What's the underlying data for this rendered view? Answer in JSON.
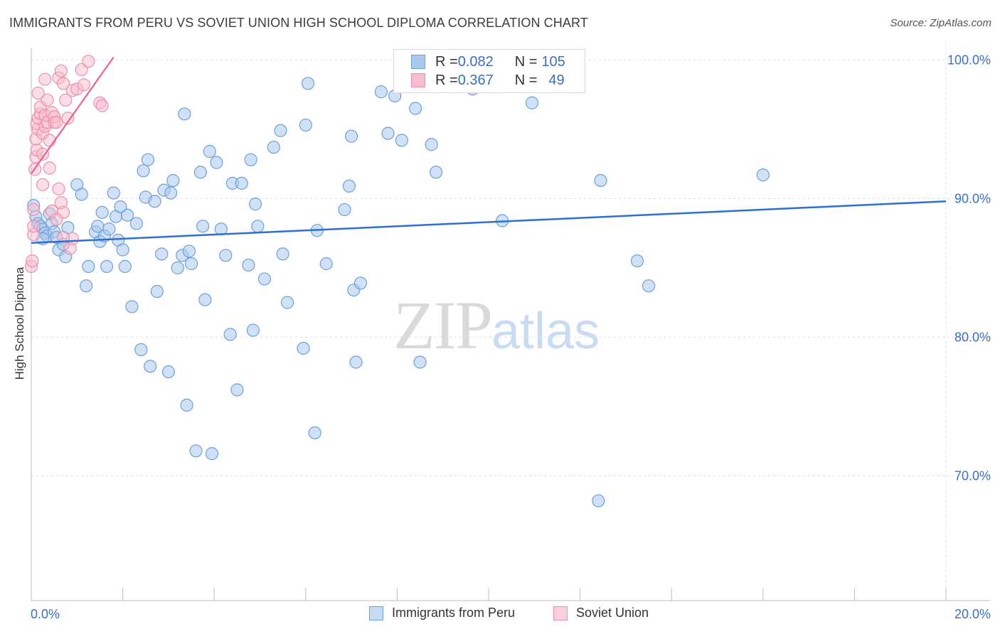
{
  "header": {
    "title": "IMMIGRANTS FROM PERU VS SOVIET UNION HIGH SCHOOL DIPLOMA CORRELATION CHART",
    "source": "Source: ZipAtlas.com"
  },
  "watermark": {
    "part1": "ZIP",
    "part2": "atlas"
  },
  "legend": {
    "rows": [
      {
        "r_key": "R = ",
        "r_val": "0.082",
        "n_key": "N = ",
        "n_val": "105"
      },
      {
        "r_key": "R = ",
        "r_val": "0.367",
        "n_key": "N = ",
        "n_val": "49"
      }
    ]
  },
  "chart_data": {
    "type": "scatter",
    "ylabel": "High School Diploma",
    "xlim": [
      0,
      20
    ],
    "ylim": [
      61,
      101.5
    ],
    "x_tick_labels": [
      "0.0%",
      "20.0%"
    ],
    "y_ticks": [
      70,
      80,
      90,
      100
    ],
    "y_tick_labels": [
      "70.0%",
      "80.0%",
      "90.0%",
      "100.0%"
    ],
    "grid": true,
    "colors": {
      "peru_fill": "#aac8ee",
      "peru_stroke": "#6f9fd8",
      "peru_line": "#2f6fcf",
      "soviet_fill": "#f7bccd",
      "soviet_stroke": "#ee8fab",
      "soviet_line": "#e8638e",
      "tick_label": "#3a6fc4"
    },
    "series": [
      {
        "name": "Immigrants from Peru",
        "r": 0.082,
        "n": 105,
        "trend": {
          "x": [
            0,
            20
          ],
          "y": [
            86.8,
            89.8
          ]
        },
        "points": [
          [
            0.05,
            89.5
          ],
          [
            0.1,
            88.7
          ],
          [
            0.15,
            88.2
          ],
          [
            0.2,
            88.0
          ],
          [
            0.25,
            87.8
          ],
          [
            0.3,
            87.5
          ],
          [
            0.35,
            87.3
          ],
          [
            0.25,
            87.1
          ],
          [
            0.4,
            88.9
          ],
          [
            0.45,
            88.2
          ],
          [
            0.5,
            87.6
          ],
          [
            0.55,
            87.2
          ],
          [
            0.6,
            86.3
          ],
          [
            0.7,
            86.7
          ],
          [
            0.75,
            85.8
          ],
          [
            0.8,
            87.9
          ],
          [
            1.0,
            91.0
          ],
          [
            1.1,
            90.3
          ],
          [
            1.2,
            83.7
          ],
          [
            1.25,
            85.1
          ],
          [
            1.4,
            87.6
          ],
          [
            1.45,
            88.0
          ],
          [
            1.5,
            86.9
          ],
          [
            1.55,
            89.0
          ],
          [
            1.6,
            87.3
          ],
          [
            1.65,
            85.1
          ],
          [
            1.7,
            87.8
          ],
          [
            1.8,
            90.4
          ],
          [
            1.85,
            88.7
          ],
          [
            1.9,
            87.0
          ],
          [
            1.95,
            89.4
          ],
          [
            2.0,
            86.3
          ],
          [
            2.05,
            85.1
          ],
          [
            2.1,
            88.8
          ],
          [
            2.2,
            82.2
          ],
          [
            2.3,
            88.2
          ],
          [
            2.4,
            79.1
          ],
          [
            2.45,
            92.0
          ],
          [
            2.5,
            90.1
          ],
          [
            2.55,
            92.8
          ],
          [
            2.6,
            77.9
          ],
          [
            2.7,
            89.8
          ],
          [
            2.75,
            83.3
          ],
          [
            2.85,
            86.0
          ],
          [
            2.9,
            90.6
          ],
          [
            3.0,
            77.5
          ],
          [
            3.05,
            90.4
          ],
          [
            3.1,
            91.3
          ],
          [
            3.2,
            85.0
          ],
          [
            3.3,
            85.9
          ],
          [
            3.35,
            96.1
          ],
          [
            3.4,
            75.1
          ],
          [
            3.45,
            86.2
          ],
          [
            3.5,
            85.3
          ],
          [
            3.6,
            71.8
          ],
          [
            3.7,
            91.9
          ],
          [
            3.75,
            88.0
          ],
          [
            3.8,
            82.7
          ],
          [
            3.9,
            93.4
          ],
          [
            3.95,
            71.6
          ],
          [
            4.05,
            92.6
          ],
          [
            4.15,
            87.8
          ],
          [
            4.25,
            85.9
          ],
          [
            4.35,
            80.2
          ],
          [
            4.4,
            91.1
          ],
          [
            4.5,
            76.2
          ],
          [
            4.6,
            91.1
          ],
          [
            4.75,
            85.2
          ],
          [
            4.8,
            92.8
          ],
          [
            4.85,
            80.5
          ],
          [
            4.9,
            89.6
          ],
          [
            4.95,
            88.0
          ],
          [
            5.1,
            84.2
          ],
          [
            5.3,
            93.7
          ],
          [
            5.45,
            94.9
          ],
          [
            5.5,
            86.0
          ],
          [
            5.6,
            82.5
          ],
          [
            5.95,
            79.2
          ],
          [
            6.0,
            95.3
          ],
          [
            6.05,
            98.3
          ],
          [
            6.2,
            73.1
          ],
          [
            6.25,
            87.7
          ],
          [
            6.45,
            85.3
          ],
          [
            6.85,
            89.2
          ],
          [
            6.95,
            90.9
          ],
          [
            7.0,
            94.5
          ],
          [
            7.05,
            83.4
          ],
          [
            7.1,
            78.2
          ],
          [
            7.2,
            83.9
          ],
          [
            7.65,
            97.7
          ],
          [
            7.8,
            94.7
          ],
          [
            7.95,
            97.4
          ],
          [
            8.1,
            94.2
          ],
          [
            8.4,
            96.5
          ],
          [
            8.5,
            78.2
          ],
          [
            8.75,
            93.9
          ],
          [
            8.85,
            91.9
          ],
          [
            9.65,
            97.9
          ],
          [
            10.3,
            88.4
          ],
          [
            10.95,
            96.9
          ],
          [
            12.4,
            68.2
          ],
          [
            12.45,
            91.3
          ],
          [
            13.25,
            85.5
          ],
          [
            13.5,
            83.7
          ],
          [
            16.0,
            91.7
          ]
        ]
      },
      {
        "name": "Soviet Union",
        "r": 0.367,
        "n": 49,
        "trend": {
          "x": [
            0,
            1.8
          ],
          "y": [
            91.8,
            100.2
          ]
        },
        "points": [
          [
            0.0,
            85.1
          ],
          [
            0.02,
            85.5
          ],
          [
            0.05,
            87.4
          ],
          [
            0.05,
            88.0
          ],
          [
            0.08,
            92.1
          ],
          [
            0.1,
            93.0
          ],
          [
            0.12,
            93.5
          ],
          [
            0.1,
            94.3
          ],
          [
            0.15,
            95.0
          ],
          [
            0.12,
            95.4
          ],
          [
            0.15,
            95.8
          ],
          [
            0.2,
            96.1
          ],
          [
            0.2,
            96.6
          ],
          [
            0.25,
            94.7
          ],
          [
            0.25,
            93.2
          ],
          [
            0.3,
            95.2
          ],
          [
            0.3,
            96.0
          ],
          [
            0.35,
            95.5
          ],
          [
            0.35,
            97.1
          ],
          [
            0.4,
            94.2
          ],
          [
            0.4,
            92.2
          ],
          [
            0.45,
            96.2
          ],
          [
            0.45,
            89.1
          ],
          [
            0.5,
            95.5
          ],
          [
            0.5,
            95.9
          ],
          [
            0.55,
            95.5
          ],
          [
            0.6,
            98.7
          ],
          [
            0.65,
            99.2
          ],
          [
            0.7,
            98.3
          ],
          [
            0.75,
            97.1
          ],
          [
            0.8,
            95.8
          ],
          [
            0.85,
            86.4
          ],
          [
            0.9,
            97.8
          ],
          [
            0.9,
            87.1
          ],
          [
            0.6,
            90.7
          ],
          [
            0.65,
            89.7
          ],
          [
            0.7,
            89.0
          ],
          [
            0.55,
            88.5
          ],
          [
            0.25,
            91.0
          ],
          [
            0.15,
            97.6
          ],
          [
            1.0,
            97.9
          ],
          [
            1.1,
            99.3
          ],
          [
            1.15,
            98.2
          ],
          [
            1.25,
            99.9
          ],
          [
            1.5,
            96.9
          ],
          [
            1.55,
            96.7
          ],
          [
            0.05,
            89.2
          ],
          [
            0.7,
            87.2
          ],
          [
            0.3,
            98.6
          ]
        ]
      }
    ]
  }
}
